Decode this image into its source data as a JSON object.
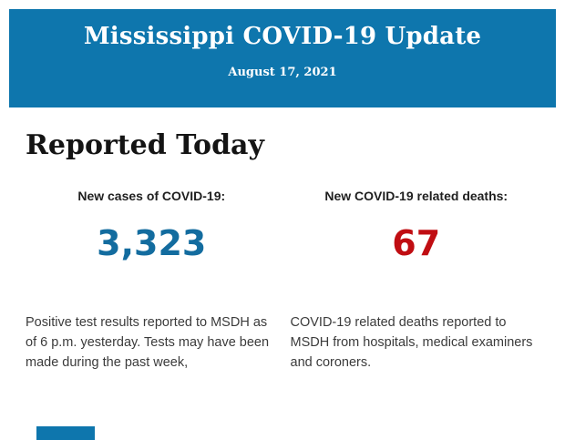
{
  "theme": {
    "page_bg": "#FFFFFF",
    "header_bg": "#0E76AD",
    "header_text": "#FFFFFF",
    "heading_color": "#141414",
    "cases_color": "#136C9F",
    "deaths_color": "#C00D12",
    "body_text": "#3B3B3B",
    "footer_block": "#0E76AD"
  },
  "header": {
    "title": "Mississippi COVID-19 Update",
    "date": "August 17, 2021"
  },
  "main": {
    "heading": "Reported Today",
    "stats": [
      {
        "label": "New cases of COVID-19:",
        "value": "3,323",
        "description": "Positive test results reported to MSDH as of 6 p.m. yesterday. Tests may have been made during the past week,"
      },
      {
        "label": "New COVID-19 related deaths:",
        "value": "67",
        "description": "COVID-19 related deaths reported to MSDH from hospitals, medical examiners and coroners."
      }
    ]
  }
}
